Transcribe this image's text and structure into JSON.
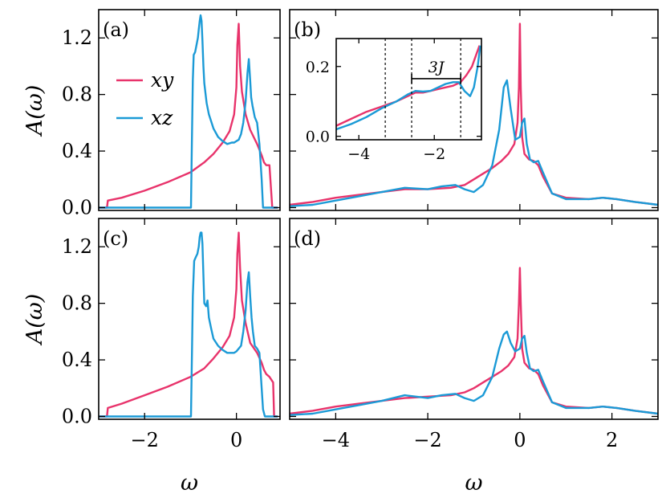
{
  "colors": {
    "xy": "#e8336b",
    "xz": "#1b9ad6"
  },
  "chart_data": [
    {
      "panel": "(a)",
      "type": "line",
      "xlim": [
        -3.0,
        0.95
      ],
      "ylim": [
        -0.02,
        1.4
      ],
      "xticks": [
        -2,
        0
      ],
      "yticks": [
        0.0,
        0.4,
        0.8,
        1.2
      ],
      "ylabel": "A(ω)",
      "xlabel": "",
      "legend": {
        "placement": "upper-left",
        "entries": [
          "xy",
          "xz"
        ]
      },
      "series": [
        {
          "name": "xy",
          "color": "#e8336b",
          "x": [
            -3.0,
            -2.82,
            -2.8,
            -2.5,
            -2.0,
            -1.5,
            -1.0,
            -0.7,
            -0.5,
            -0.3,
            -0.15,
            -0.05,
            0.0,
            0.02,
            0.05,
            0.08,
            0.12,
            0.2,
            0.3,
            0.45,
            0.55,
            0.6,
            0.65,
            0.72,
            0.78,
            0.9
          ],
          "y": [
            0.0,
            0.0,
            0.05,
            0.07,
            0.12,
            0.18,
            0.25,
            0.32,
            0.38,
            0.46,
            0.54,
            0.66,
            0.85,
            1.15,
            1.3,
            1.0,
            0.82,
            0.66,
            0.55,
            0.45,
            0.37,
            0.32,
            0.3,
            0.3,
            0.0,
            0.0
          ]
        },
        {
          "name": "xz",
          "color": "#1b9ad6",
          "x": [
            -3.0,
            -0.99,
            -0.97,
            -0.95,
            -0.93,
            -0.9,
            -0.87,
            -0.84,
            -0.82,
            -0.8,
            -0.78,
            -0.76,
            -0.74,
            -0.72,
            -0.7,
            -0.65,
            -0.6,
            -0.5,
            -0.4,
            -0.3,
            -0.2,
            -0.1,
            -0.05,
            0.0,
            0.05,
            0.1,
            0.15,
            0.2,
            0.24,
            0.27,
            0.3,
            0.32,
            0.35,
            0.4,
            0.45,
            0.5,
            0.55,
            0.58,
            0.62,
            0.9
          ],
          "y": [
            0.0,
            0.0,
            0.45,
            0.9,
            1.08,
            1.1,
            1.15,
            1.2,
            1.26,
            1.32,
            1.36,
            1.32,
            1.18,
            1.0,
            0.88,
            0.74,
            0.66,
            0.56,
            0.5,
            0.47,
            0.45,
            0.46,
            0.46,
            0.47,
            0.48,
            0.52,
            0.6,
            0.75,
            0.95,
            1.05,
            0.9,
            0.78,
            0.72,
            0.64,
            0.6,
            0.45,
            0.2,
            0.0,
            0.0,
            0.0
          ]
        }
      ]
    },
    {
      "panel": "(b)",
      "type": "line",
      "xlim": [
        -5.0,
        3.0
      ],
      "ylim": [
        -0.02,
        1.4
      ],
      "xticks": [],
      "yticks": [
        0.0,
        0.4,
        0.8,
        1.2
      ],
      "series": [
        {
          "name": "xy",
          "color": "#e8336b",
          "x": [
            -5.0,
            -4.5,
            -4.0,
            -3.5,
            -3.0,
            -2.5,
            -2.0,
            -1.5,
            -1.2,
            -1.0,
            -0.8,
            -0.6,
            -0.4,
            -0.25,
            -0.12,
            -0.05,
            -0.02,
            0.0,
            0.02,
            0.05,
            0.1,
            0.2,
            0.3,
            0.4,
            0.5,
            0.7,
            1.0,
            1.5,
            1.8,
            2.1,
            2.5,
            3.0
          ],
          "y": [
            0.02,
            0.04,
            0.07,
            0.09,
            0.11,
            0.13,
            0.13,
            0.14,
            0.16,
            0.2,
            0.24,
            0.28,
            0.33,
            0.38,
            0.45,
            0.6,
            0.85,
            1.3,
            0.85,
            0.5,
            0.38,
            0.34,
            0.33,
            0.3,
            0.22,
            0.1,
            0.07,
            0.06,
            0.07,
            0.06,
            0.04,
            0.02
          ]
        },
        {
          "name": "xz",
          "color": "#1b9ad6",
          "x": [
            -5.0,
            -4.5,
            -4.0,
            -3.5,
            -3.0,
            -2.5,
            -2.0,
            -1.7,
            -1.4,
            -1.2,
            -1.0,
            -0.8,
            -0.6,
            -0.45,
            -0.35,
            -0.28,
            -0.2,
            -0.1,
            0.0,
            0.05,
            0.1,
            0.15,
            0.22,
            0.3,
            0.4,
            0.5,
            0.7,
            1.0,
            1.5,
            1.8,
            2.1,
            2.5,
            3.0
          ],
          "y": [
            0.01,
            0.02,
            0.05,
            0.08,
            0.11,
            0.14,
            0.13,
            0.15,
            0.16,
            0.13,
            0.11,
            0.16,
            0.3,
            0.55,
            0.85,
            0.9,
            0.7,
            0.48,
            0.5,
            0.6,
            0.63,
            0.45,
            0.34,
            0.32,
            0.33,
            0.25,
            0.1,
            0.06,
            0.06,
            0.07,
            0.06,
            0.04,
            0.02
          ]
        }
      ],
      "inset": {
        "xlim": [
          -4.6,
          -0.75
        ],
        "ylim": [
          -0.01,
          0.28
        ],
        "xticks": [
          -4,
          -2
        ],
        "yticks": [
          0.0,
          0.2
        ],
        "vlines": [
          -3.3,
          -2.6,
          -1.3
        ],
        "annotation": {
          "text": "3J",
          "from": -2.6,
          "to": -1.3,
          "y": 0.165
        },
        "series": [
          {
            "name": "xy",
            "color": "#e8336b",
            "x": [
              -4.6,
              -4.2,
              -3.8,
              -3.4,
              -3.0,
              -2.7,
              -2.5,
              -2.3,
              -2.1,
              -1.9,
              -1.7,
              -1.5,
              -1.3,
              -1.15,
              -1.0,
              -0.9,
              -0.8
            ],
            "y": [
              0.03,
              0.05,
              0.07,
              0.085,
              0.1,
              0.115,
              0.125,
              0.125,
              0.13,
              0.135,
              0.14,
              0.145,
              0.155,
              0.175,
              0.2,
              0.23,
              0.26
            ]
          },
          {
            "name": "xz",
            "color": "#1b9ad6",
            "x": [
              -4.6,
              -4.2,
              -3.8,
              -3.4,
              -3.0,
              -2.7,
              -2.5,
              -2.3,
              -2.1,
              -1.9,
              -1.7,
              -1.5,
              -1.35,
              -1.2,
              -1.05,
              -0.95,
              -0.85,
              -0.78
            ],
            "y": [
              0.02,
              0.035,
              0.055,
              0.08,
              0.1,
              0.12,
              0.13,
              0.128,
              0.13,
              0.14,
              0.15,
              0.155,
              0.155,
              0.13,
              0.115,
              0.14,
              0.2,
              0.26
            ]
          }
        ]
      }
    },
    {
      "panel": "(c)",
      "type": "line",
      "xlim": [
        -3.0,
        0.95
      ],
      "ylim": [
        -0.02,
        1.4
      ],
      "xticks": [
        -2,
        0
      ],
      "yticks": [
        0.0,
        0.4,
        0.8,
        1.2
      ],
      "ylabel": "A(ω)",
      "xlabel": "ω",
      "series": [
        {
          "name": "xy",
          "color": "#e8336b",
          "x": [
            -3.0,
            -2.82,
            -2.8,
            -2.5,
            -2.0,
            -1.5,
            -1.0,
            -0.7,
            -0.5,
            -0.3,
            -0.15,
            -0.05,
            0.0,
            0.02,
            0.05,
            0.08,
            0.12,
            0.2,
            0.3,
            0.45,
            0.55,
            0.6,
            0.65,
            0.72,
            0.8,
            0.82,
            0.9
          ],
          "y": [
            0.0,
            0.0,
            0.06,
            0.09,
            0.15,
            0.21,
            0.28,
            0.34,
            0.41,
            0.49,
            0.57,
            0.7,
            0.9,
            1.15,
            1.3,
            1.05,
            0.82,
            0.66,
            0.52,
            0.45,
            0.38,
            0.33,
            0.3,
            0.28,
            0.24,
            0.0,
            0.0
          ]
        },
        {
          "name": "xz",
          "color": "#1b9ad6",
          "x": [
            -3.0,
            -0.99,
            -0.97,
            -0.95,
            -0.92,
            -0.88,
            -0.85,
            -0.82,
            -0.8,
            -0.78,
            -0.76,
            -0.74,
            -0.72,
            -0.7,
            -0.66,
            -0.63,
            -0.6,
            -0.55,
            -0.5,
            -0.4,
            -0.3,
            -0.2,
            -0.1,
            -0.05,
            0.0,
            0.05,
            0.1,
            0.15,
            0.2,
            0.24,
            0.27,
            0.3,
            0.33,
            0.36,
            0.4,
            0.45,
            0.5,
            0.55,
            0.58,
            0.62,
            0.9
          ],
          "y": [
            0.0,
            0.0,
            0.4,
            0.85,
            1.1,
            1.13,
            1.15,
            1.2,
            1.27,
            1.3,
            1.3,
            1.22,
            1.0,
            0.8,
            0.78,
            0.82,
            0.7,
            0.62,
            0.55,
            0.5,
            0.47,
            0.45,
            0.45,
            0.45,
            0.46,
            0.48,
            0.5,
            0.6,
            0.75,
            0.95,
            1.02,
            0.85,
            0.7,
            0.6,
            0.5,
            0.48,
            0.45,
            0.2,
            0.05,
            0.0,
            0.0
          ]
        }
      ]
    },
    {
      "panel": "(d)",
      "type": "line",
      "xlim": [
        -5.0,
        3.0
      ],
      "ylim": [
        -0.02,
        1.4
      ],
      "xticks": [
        -4,
        -2,
        0,
        2
      ],
      "yticks": [
        0.0,
        0.4,
        0.8,
        1.2
      ],
      "xlabel": "ω",
      "series": [
        {
          "name": "xy",
          "color": "#e8336b",
          "x": [
            -5.0,
            -4.5,
            -4.0,
            -3.5,
            -3.0,
            -2.5,
            -2.0,
            -1.5,
            -1.2,
            -1.0,
            -0.8,
            -0.6,
            -0.4,
            -0.25,
            -0.12,
            -0.05,
            -0.02,
            0.0,
            0.02,
            0.05,
            0.1,
            0.2,
            0.3,
            0.4,
            0.5,
            0.7,
            1.0,
            1.5,
            1.8,
            2.1,
            2.5,
            3.0
          ],
          "y": [
            0.02,
            0.04,
            0.07,
            0.09,
            0.11,
            0.13,
            0.14,
            0.15,
            0.17,
            0.2,
            0.24,
            0.28,
            0.32,
            0.36,
            0.42,
            0.55,
            0.8,
            1.05,
            0.8,
            0.48,
            0.38,
            0.34,
            0.33,
            0.3,
            0.22,
            0.1,
            0.07,
            0.06,
            0.07,
            0.06,
            0.04,
            0.02
          ]
        },
        {
          "name": "xz",
          "color": "#1b9ad6",
          "x": [
            -5.0,
            -4.5,
            -4.0,
            -3.5,
            -3.0,
            -2.5,
            -2.0,
            -1.7,
            -1.4,
            -1.2,
            -1.0,
            -0.8,
            -0.6,
            -0.45,
            -0.35,
            -0.28,
            -0.2,
            -0.1,
            0.0,
            0.05,
            0.1,
            0.15,
            0.22,
            0.3,
            0.4,
            0.5,
            0.7,
            1.0,
            1.5,
            1.8,
            2.1,
            2.5,
            3.0
          ],
          "y": [
            0.01,
            0.02,
            0.05,
            0.08,
            0.11,
            0.15,
            0.13,
            0.15,
            0.16,
            0.13,
            0.11,
            0.15,
            0.28,
            0.48,
            0.58,
            0.6,
            0.52,
            0.46,
            0.48,
            0.55,
            0.57,
            0.45,
            0.34,
            0.32,
            0.33,
            0.25,
            0.1,
            0.06,
            0.06,
            0.07,
            0.06,
            0.04,
            0.02
          ]
        }
      ]
    }
  ]
}
